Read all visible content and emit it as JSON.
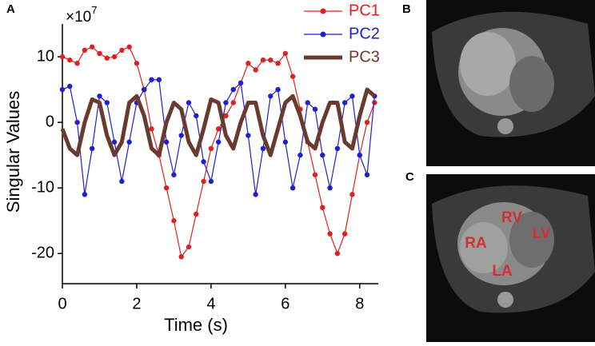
{
  "chart_data": {
    "type": "line",
    "panel_label": "A",
    "y_scale_label": {
      "base": "×10",
      "exponent": "7"
    },
    "xlabel": "Time (s)",
    "ylabel": "Singular Values",
    "xlim": [
      0,
      8.5
    ],
    "ylim": [
      -24.6,
      15
    ],
    "xticks": [
      0,
      2,
      4,
      6,
      8
    ],
    "yticks": [
      -20,
      -10,
      0,
      10
    ],
    "legend": "upper right",
    "x": [
      0,
      0.2,
      0.4,
      0.6,
      0.8,
      1.0,
      1.2,
      1.4,
      1.6,
      1.8,
      2.0,
      2.2,
      2.4,
      2.6,
      2.8,
      3.0,
      3.2,
      3.4,
      3.6,
      3.8,
      4.0,
      4.2,
      4.4,
      4.6,
      4.8,
      5.0,
      5.2,
      5.4,
      5.6,
      5.8,
      6.0,
      6.2,
      6.4,
      6.6,
      6.8,
      7.0,
      7.2,
      7.4,
      7.6,
      7.8,
      8.0,
      8.2,
      8.4
    ],
    "series": [
      {
        "name": "PC1",
        "color": "#e02020",
        "marker": "circle",
        "line_width": 1.2,
        "values": [
          10,
          9.5,
          9,
          11,
          11.5,
          10.5,
          9.8,
          10,
          11,
          11.5,
          9,
          5,
          -1,
          -5,
          -10,
          -15,
          -20.5,
          -19,
          -14,
          -9,
          -4,
          -1,
          1,
          3,
          6,
          9,
          8,
          9.5,
          9.5,
          9,
          10.5,
          7,
          2,
          -3,
          -8,
          -13,
          -17,
          -20,
          -17,
          -11,
          -5,
          0,
          3
        ]
      },
      {
        "name": "PC2",
        "color": "#2020d0",
        "marker": "circle",
        "line_width": 1.2,
        "values": [
          5,
          5.5,
          0,
          -11,
          -4,
          4,
          3,
          -3,
          -9,
          -3,
          3,
          5,
          6.5,
          6.5,
          -3,
          -8,
          -2,
          3,
          1,
          -6,
          -9,
          -3,
          3,
          5,
          6,
          -2,
          -11,
          -4,
          4,
          5,
          -3,
          -10,
          -5,
          3,
          2,
          -5,
          -10,
          -4,
          3,
          4,
          -5,
          -8,
          4
        ]
      },
      {
        "name": "PC3",
        "color": "#6b3a2e",
        "marker": "none",
        "line_width": 5,
        "values": [
          -1,
          -4,
          -5,
          0,
          3.5,
          3,
          -2,
          -5,
          -3,
          3,
          4,
          1,
          -4,
          -5,
          0,
          3,
          2,
          -3,
          -5,
          -1,
          3.5,
          3,
          -2,
          -4,
          0,
          3,
          3,
          -2,
          -5,
          -1,
          3,
          4,
          1,
          -3,
          -4,
          0,
          3,
          3,
          -3,
          -4,
          1,
          5,
          4
        ]
      }
    ]
  },
  "images": [
    {
      "label": "B"
    },
    {
      "label": "C",
      "annotations": [
        "RV",
        "LV",
        "RA",
        "LA"
      ]
    }
  ]
}
